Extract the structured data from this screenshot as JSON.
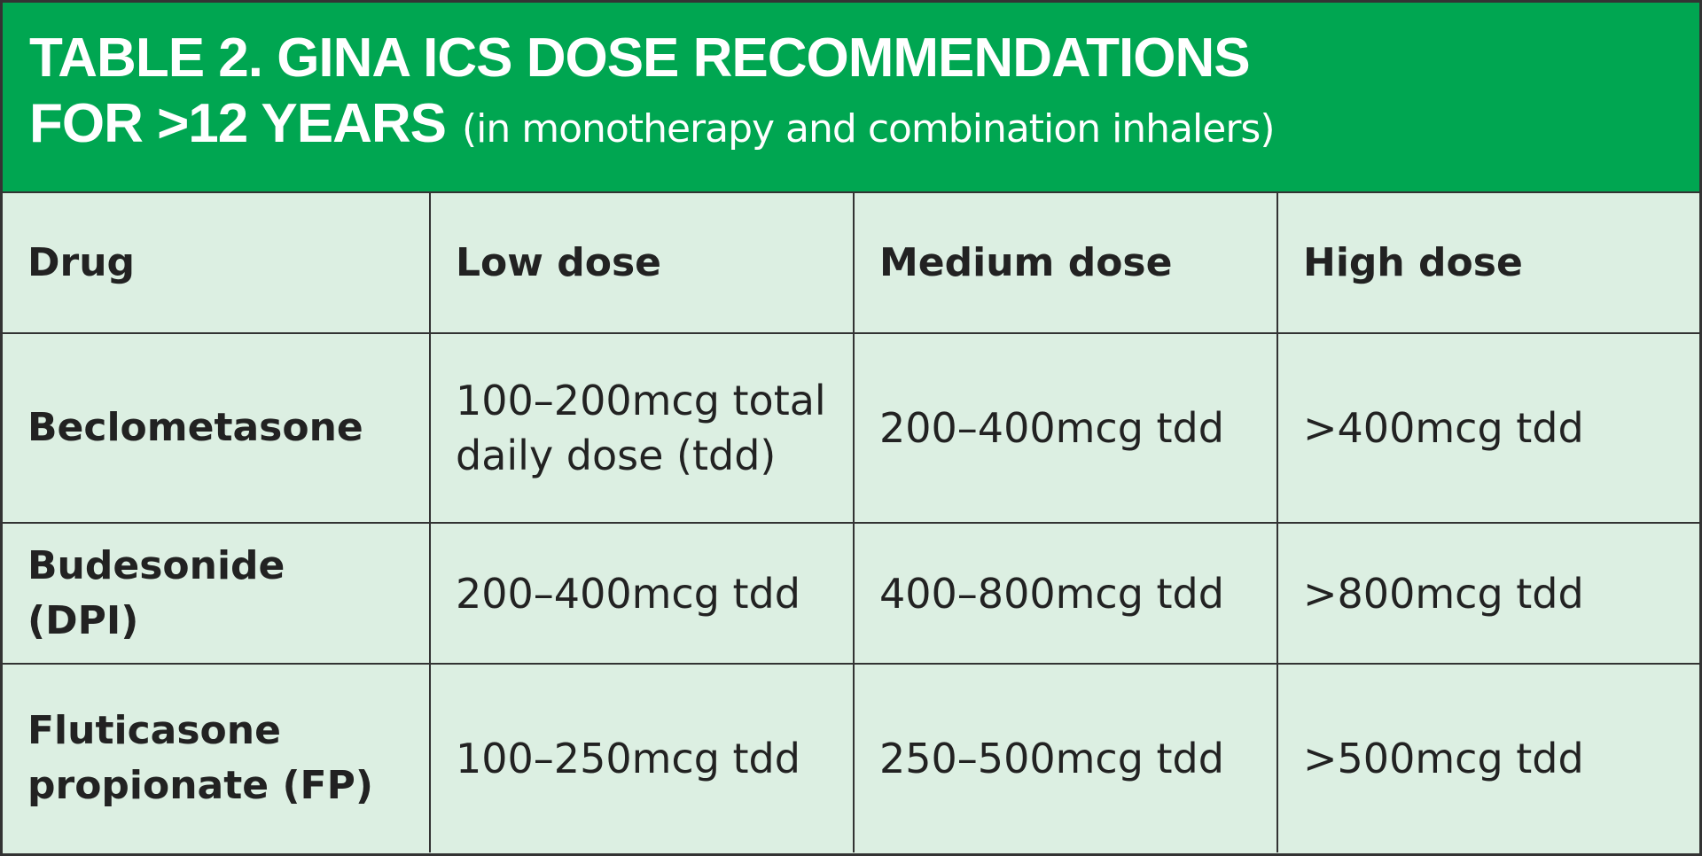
{
  "header": {
    "title_line1": "TABLE 2. GINA ICS DOSE RECOMMENDATIONS",
    "title_line2": "FOR >12 YEARS",
    "subtitle": "(in monotherapy and combination inhalers)"
  },
  "table": {
    "columns": [
      "Drug",
      "Low dose",
      "Medium dose",
      "High dose"
    ],
    "rows": [
      [
        "Beclometasone",
        "100–200mcg total daily dose (tdd)",
        "200–400mcg tdd",
        ">400mcg tdd"
      ],
      [
        "Budesonide (DPI)",
        "200–400mcg tdd",
        "400–800mcg tdd",
        ">800mcg tdd"
      ],
      [
        "Fluticasone propionate (FP)",
        "100–250mcg tdd",
        "250–500mcg tdd",
        ">500mcg tdd"
      ]
    ]
  }
}
